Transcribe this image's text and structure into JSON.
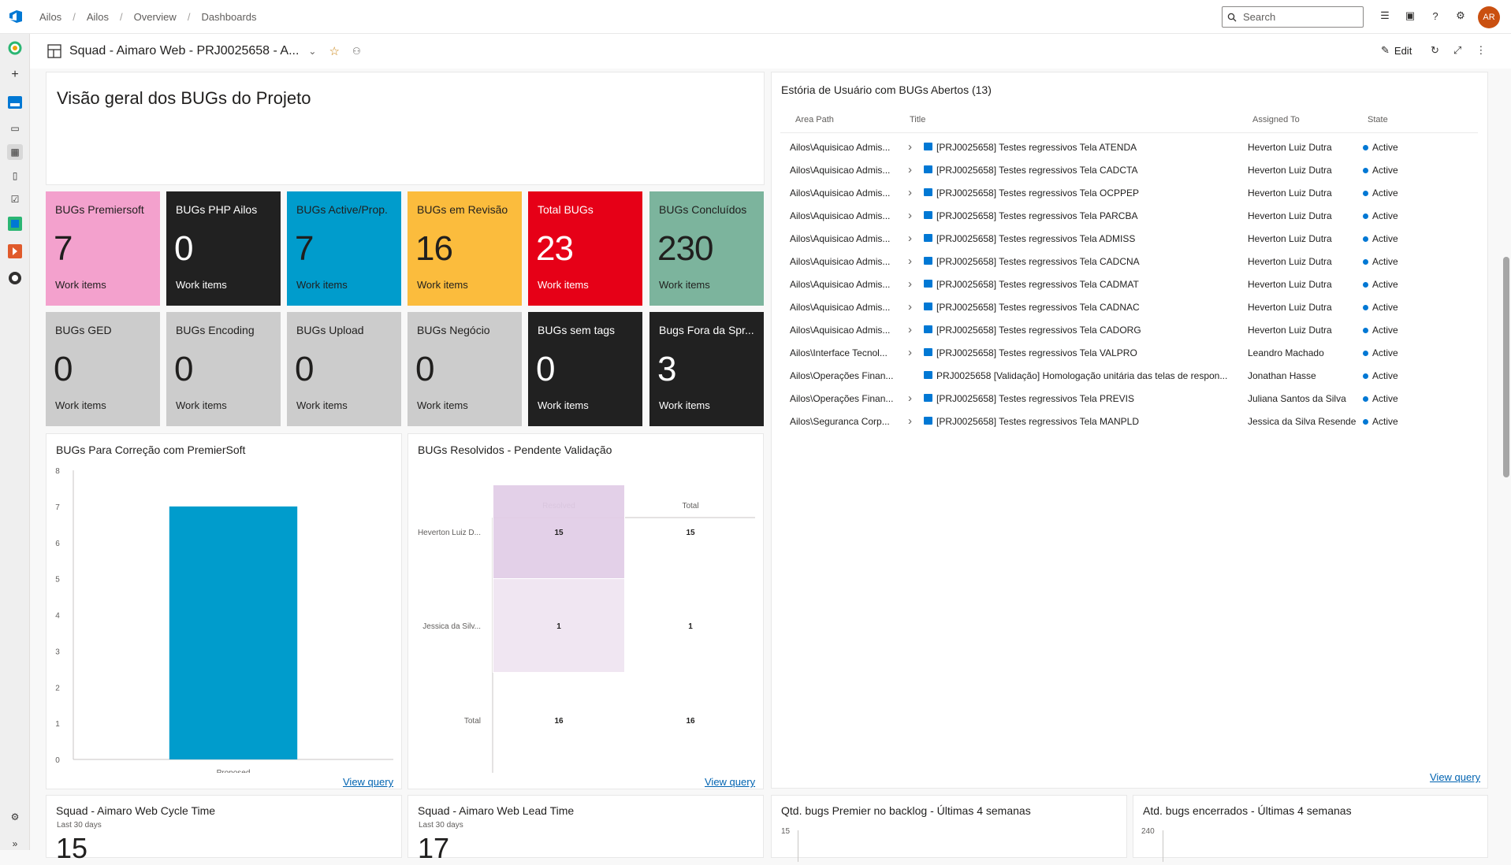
{
  "breadcrumb": [
    "Ailos",
    "Ailos",
    "Overview",
    "Dashboards"
  ],
  "search": {
    "placeholder": "Search"
  },
  "user": {
    "initials": "AR"
  },
  "dashboard": {
    "title": "Squad - Aimaro Web - PRJ0025658 - A...",
    "edit_label": "Edit"
  },
  "markdown": {
    "title": "Visão geral dos BUGs do Projeto"
  },
  "tiles": [
    {
      "title": "BUGs Premiersoft",
      "value": "7",
      "sub": "Work items",
      "color": "#f3a1cd",
      "text": "#201f1e"
    },
    {
      "title": "BUGs PHP Ailos",
      "value": "0",
      "sub": "Work items",
      "color": "#212121",
      "text": "#ffffff"
    },
    {
      "title": "BUGs Active/Prop.",
      "value": "7",
      "sub": "Work items",
      "color": "#009ccc",
      "text": "#201f1e"
    },
    {
      "title": "BUGs em Revisão",
      "value": "16",
      "sub": "Work items",
      "color": "#fbbc3d",
      "text": "#201f1e"
    },
    {
      "title": "Total BUGs",
      "value": "23",
      "sub": "Work items",
      "color": "#e60017",
      "text": "#ffffff"
    },
    {
      "title": "BUGs Concluídos",
      "value": "230",
      "sub": "Work items",
      "color": "#7cb49d",
      "text": "#201f1e"
    },
    {
      "title": "BUGs GED",
      "value": "0",
      "sub": "Work items",
      "color": "#cccccc",
      "text": "#201f1e"
    },
    {
      "title": "BUGs Encoding",
      "value": "0",
      "sub": "Work items",
      "color": "#cccccc",
      "text": "#201f1e"
    },
    {
      "title": "BUGs Upload",
      "value": "0",
      "sub": "Work items",
      "color": "#cccccc",
      "text": "#201f1e"
    },
    {
      "title": "BUGs Negócio",
      "value": "0",
      "sub": "Work items",
      "color": "#cccccc",
      "text": "#201f1e"
    },
    {
      "title": "BUGs sem tags",
      "value": "0",
      "sub": "Work items",
      "color": "#212121",
      "text": "#ffffff"
    },
    {
      "title": "Bugs Fora da Spr...",
      "value": "3",
      "sub": "Work items",
      "color": "#212121",
      "text": "#ffffff"
    }
  ],
  "query": {
    "title": "Estória de Usuário com BUGs Abertos (13)",
    "columns": [
      "Area Path",
      "Title",
      "Assigned To",
      "State"
    ],
    "rows": [
      {
        "area": "Ailos\\Aquisicao Admis...",
        "expand": true,
        "title": "[PRJ0025658] Testes regressivos Tela ATENDA",
        "assigned": "Heverton Luiz Dutra",
        "state": "Active"
      },
      {
        "area": "Ailos\\Aquisicao Admis...",
        "expand": true,
        "title": "[PRJ0025658] Testes regressivos Tela CADCTA",
        "assigned": "Heverton Luiz Dutra",
        "state": "Active"
      },
      {
        "area": "Ailos\\Aquisicao Admis...",
        "expand": true,
        "title": "[PRJ0025658] Testes regressivos Tela OCPPEP",
        "assigned": "Heverton Luiz Dutra",
        "state": "Active"
      },
      {
        "area": "Ailos\\Aquisicao Admis...",
        "expand": true,
        "title": "[PRJ0025658] Testes regressivos Tela PARCBA",
        "assigned": "Heverton Luiz Dutra",
        "state": "Active"
      },
      {
        "area": "Ailos\\Aquisicao Admis...",
        "expand": true,
        "title": "[PRJ0025658] Testes regressivos Tela ADMISS",
        "assigned": "Heverton Luiz Dutra",
        "state": "Active"
      },
      {
        "area": "Ailos\\Aquisicao Admis...",
        "expand": true,
        "title": "[PRJ0025658] Testes regressivos Tela CADCNA",
        "assigned": "Heverton Luiz Dutra",
        "state": "Active"
      },
      {
        "area": "Ailos\\Aquisicao Admis...",
        "expand": true,
        "title": "[PRJ0025658] Testes regressivos Tela CADMAT",
        "assigned": "Heverton Luiz Dutra",
        "state": "Active"
      },
      {
        "area": "Ailos\\Aquisicao Admis...",
        "expand": true,
        "title": "[PRJ0025658] Testes regressivos Tela CADNAC",
        "assigned": "Heverton Luiz Dutra",
        "state": "Active"
      },
      {
        "area": "Ailos\\Aquisicao Admis...",
        "expand": true,
        "title": "[PRJ0025658] Testes regressivos Tela CADORG",
        "assigned": "Heverton Luiz Dutra",
        "state": "Active"
      },
      {
        "area": "Ailos\\Interface Tecnol...",
        "expand": true,
        "title": "[PRJ0025658] Testes regressivos Tela VALPRO",
        "assigned": "Leandro Machado",
        "state": "Active"
      },
      {
        "area": "Ailos\\Operações Finan...",
        "expand": false,
        "title": "PRJ0025658 [Validação] Homologação unitária das telas de respon...",
        "assigned": "Jonathan Hasse",
        "state": "Active"
      },
      {
        "area": "Ailos\\Operações Finan...",
        "expand": true,
        "title": "[PRJ0025658] Testes regressivos Tela PREVIS",
        "assigned": "Juliana Santos da Silva",
        "state": "Active"
      },
      {
        "area": "Ailos\\Seguranca Corp...",
        "expand": true,
        "title": "[PRJ0025658] Testes regressivos Tela MANPLD",
        "assigned": "Jessica da Silva Resende",
        "state": "Active"
      }
    ],
    "view_query": "View query"
  },
  "chart_bar": {
    "title": "BUGs Para Correção com PremierSoft",
    "view_query": "View query"
  },
  "chart_pivot": {
    "title": "BUGs Resolvidos - Pendente Validação",
    "view_query": "View query"
  },
  "chart_data": [
    {
      "type": "bar",
      "title": "BUGs Para Correção com PremierSoft",
      "categories": [
        "Proposed"
      ],
      "values": [
        7
      ],
      "ylim": [
        0,
        8
      ],
      "yticks": [
        "0",
        "1",
        "2",
        "3",
        "4",
        "5",
        "6",
        "7",
        "8"
      ],
      "color": "#009ccc"
    },
    {
      "type": "table",
      "title": "BUGs Resolvidos - Pendente Validação",
      "columns": [
        "Resolved",
        "Total"
      ],
      "rows": [
        {
          "label": "Heverton Luiz D...",
          "values": [
            "15",
            "15"
          ]
        },
        {
          "label": "Jessica da Silv...",
          "values": [
            "1",
            "1"
          ]
        },
        {
          "label": "Total",
          "values": [
            "16",
            "16"
          ]
        }
      ],
      "color": "#e1cde6"
    }
  ],
  "bottom": [
    {
      "title": "Squad - Aimaro Web Cycle Time",
      "sub": "Last 30 days",
      "value": "15"
    },
    {
      "title": "Squad - Aimaro Web Lead Time",
      "sub": "Last 30 days",
      "value": "17"
    },
    {
      "title": "Qtd. bugs Premier no backlog - Últimas 4 semanas",
      "sub": "15"
    },
    {
      "title": "Atd. bugs encerrados - Últimas 4 semanas",
      "sub": "240"
    }
  ]
}
